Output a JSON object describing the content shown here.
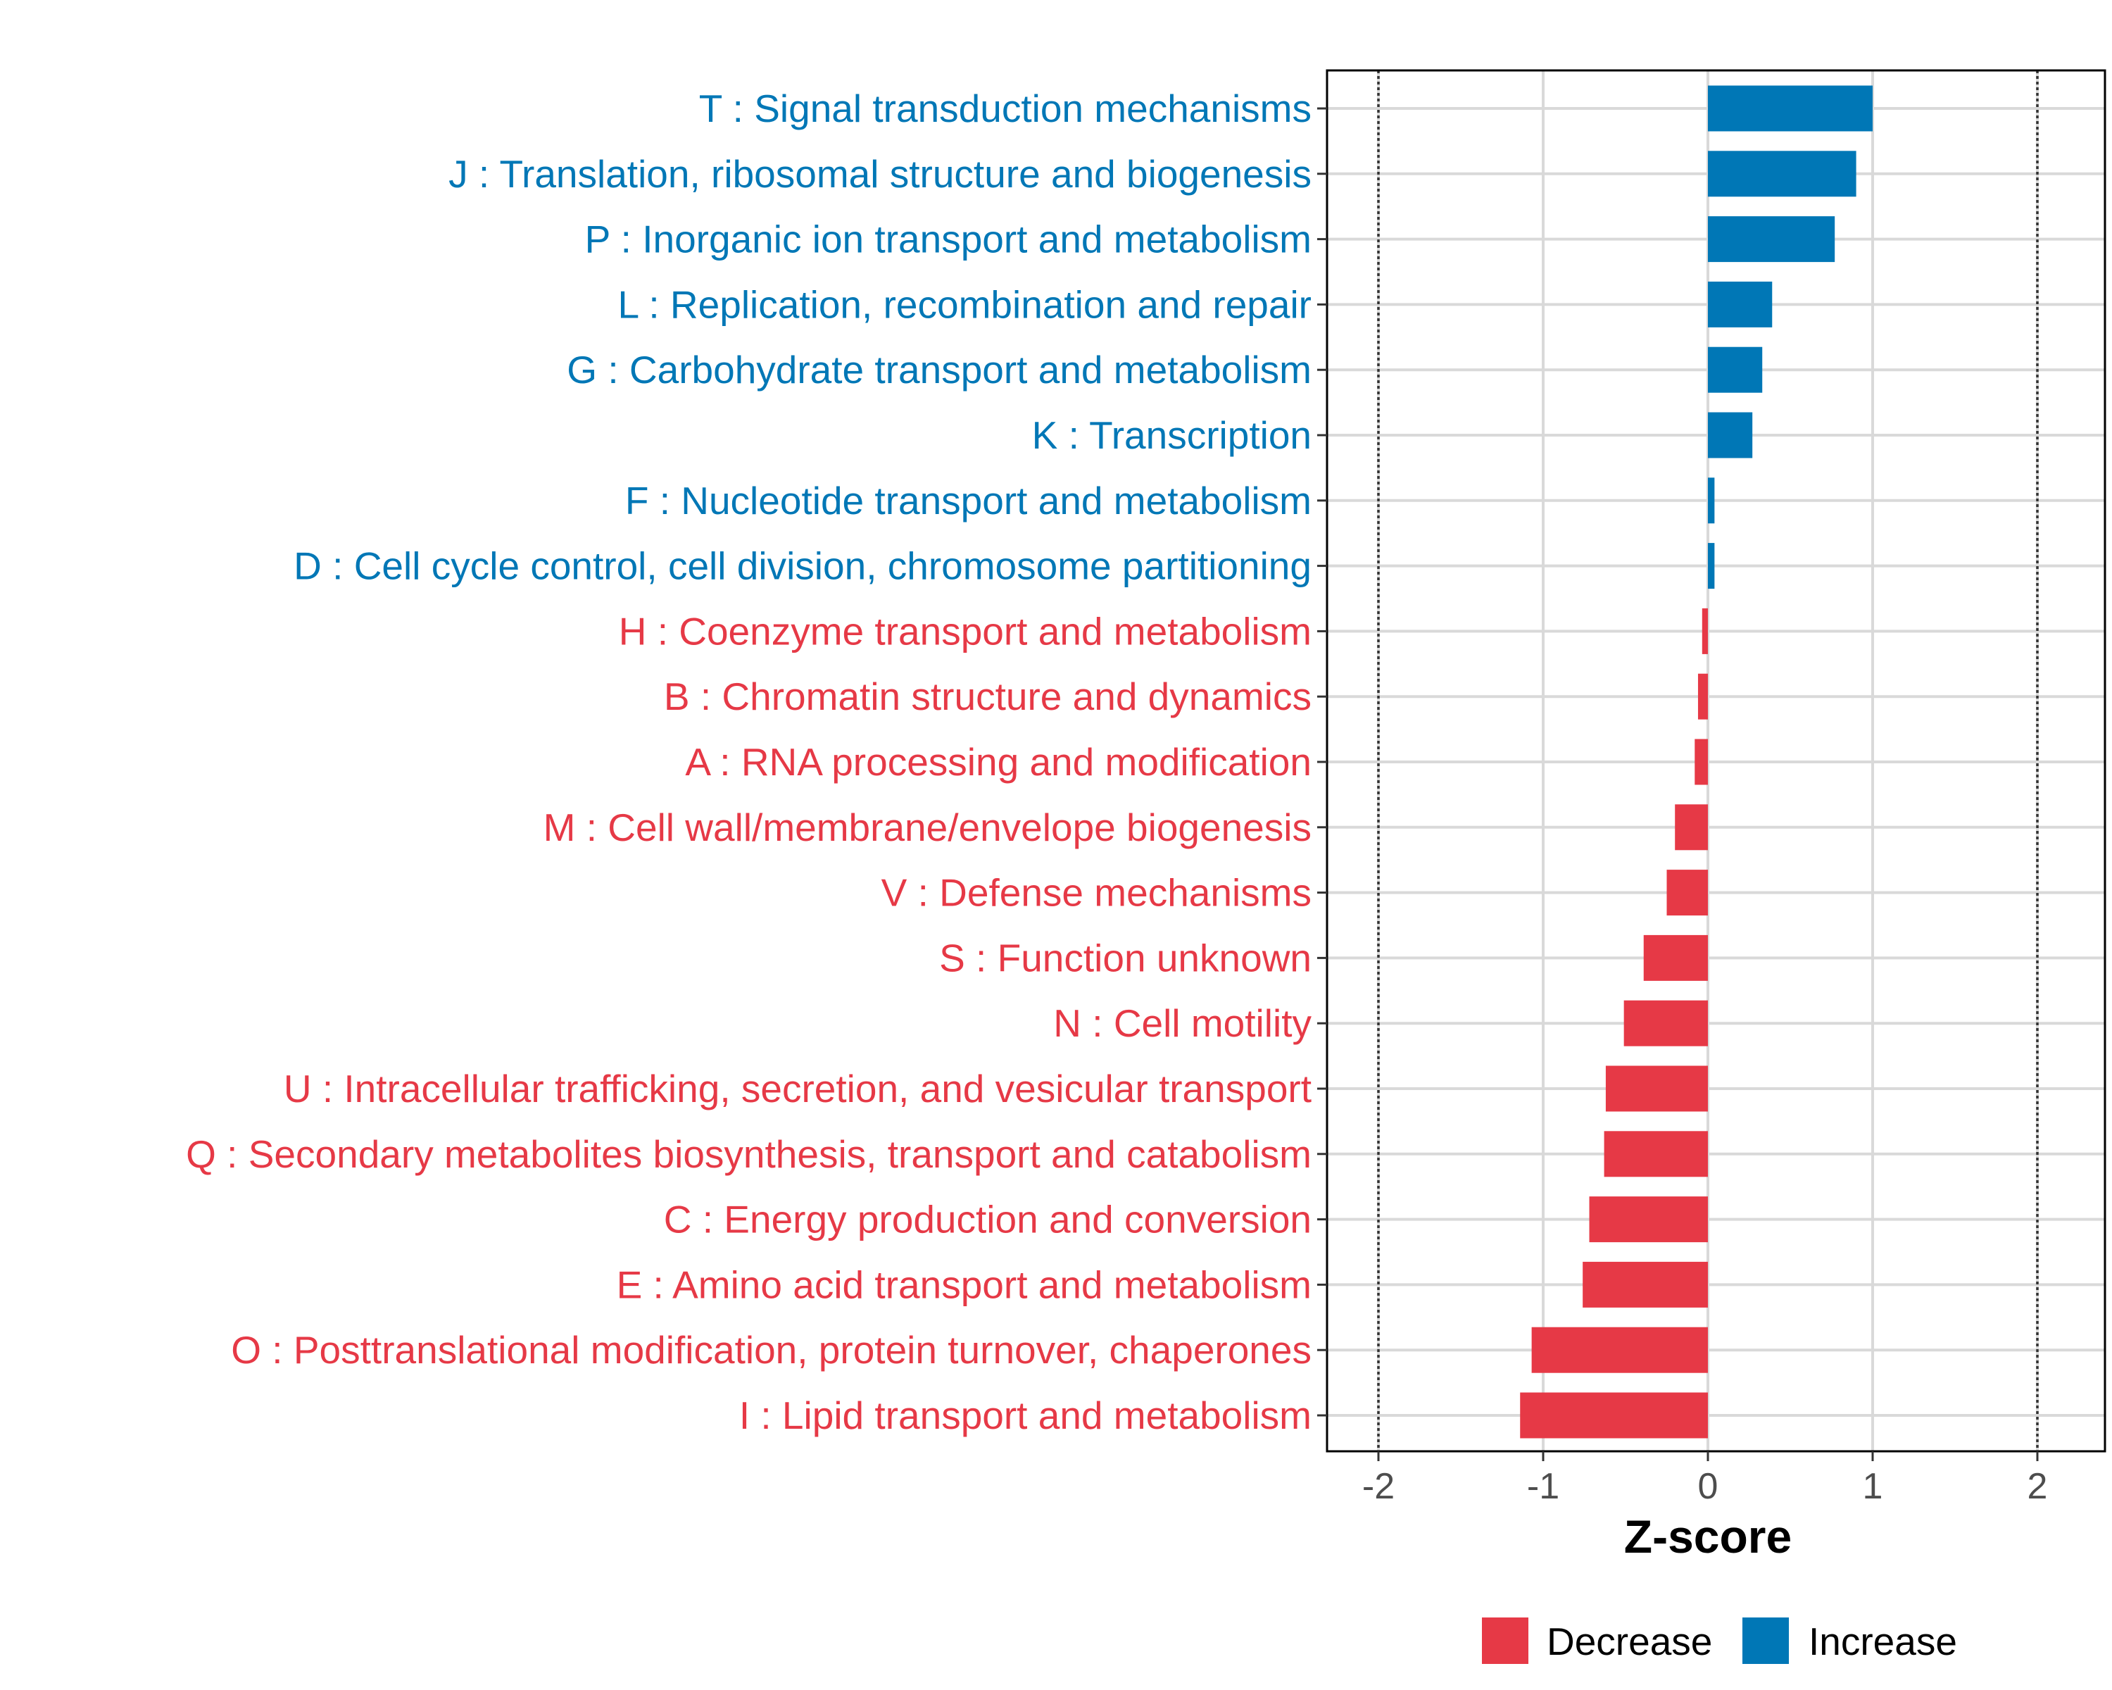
{
  "chart_data": {
    "type": "bar",
    "orientation": "horizontal",
    "xlabel": "Z-score",
    "ylabel": "",
    "xlim": [
      -2.35,
      2.35
    ],
    "xticks": [
      -2,
      -1,
      0,
      1,
      2
    ],
    "xtick_labels": [
      "-2",
      "-1",
      "0",
      "1",
      "2"
    ],
    "reference_lines": [
      -2,
      2
    ],
    "grid": true,
    "categories": [
      "T : Signal transduction mechanisms",
      "J : Translation, ribosomal structure and biogenesis",
      "P : Inorganic ion transport and metabolism",
      "L : Replication, recombination and repair",
      "G : Carbohydrate transport and metabolism",
      "K : Transcription",
      "F : Nucleotide transport and metabolism",
      "D : Cell cycle control, cell division, chromosome partitioning",
      "H : Coenzyme transport and metabolism",
      "B : Chromatin structure and dynamics",
      "A : RNA processing and modification",
      "M : Cell wall/membrane/envelope biogenesis",
      "V : Defense mechanisms",
      "S : Function unknown",
      "N : Cell motility",
      "U : Intracellular trafficking, secretion, and vesicular transport",
      "Q : Secondary metabolites biosynthesis, transport and catabolism",
      "C : Energy production and conversion",
      "E : Amino acid transport and metabolism",
      "O : Posttranslational modification, protein turnover, chaperones",
      "I : Lipid transport and metabolism"
    ],
    "values": [
      1.0,
      0.9,
      0.77,
      0.39,
      0.33,
      0.27,
      0.04,
      0.04,
      -0.035,
      -0.06,
      -0.08,
      -0.2,
      -0.25,
      -0.39,
      -0.51,
      -0.62,
      -0.63,
      -0.72,
      -0.76,
      -1.07,
      -1.14
    ],
    "legend": {
      "placement": "bottom",
      "entries": [
        {
          "label": "Decrease",
          "color": "#E63946"
        },
        {
          "label": "Increase",
          "color": "#0077B6"
        }
      ]
    },
    "colors": {
      "increase": "#0077B6",
      "decrease": "#E63946",
      "grid": "#D9D9D9"
    }
  }
}
